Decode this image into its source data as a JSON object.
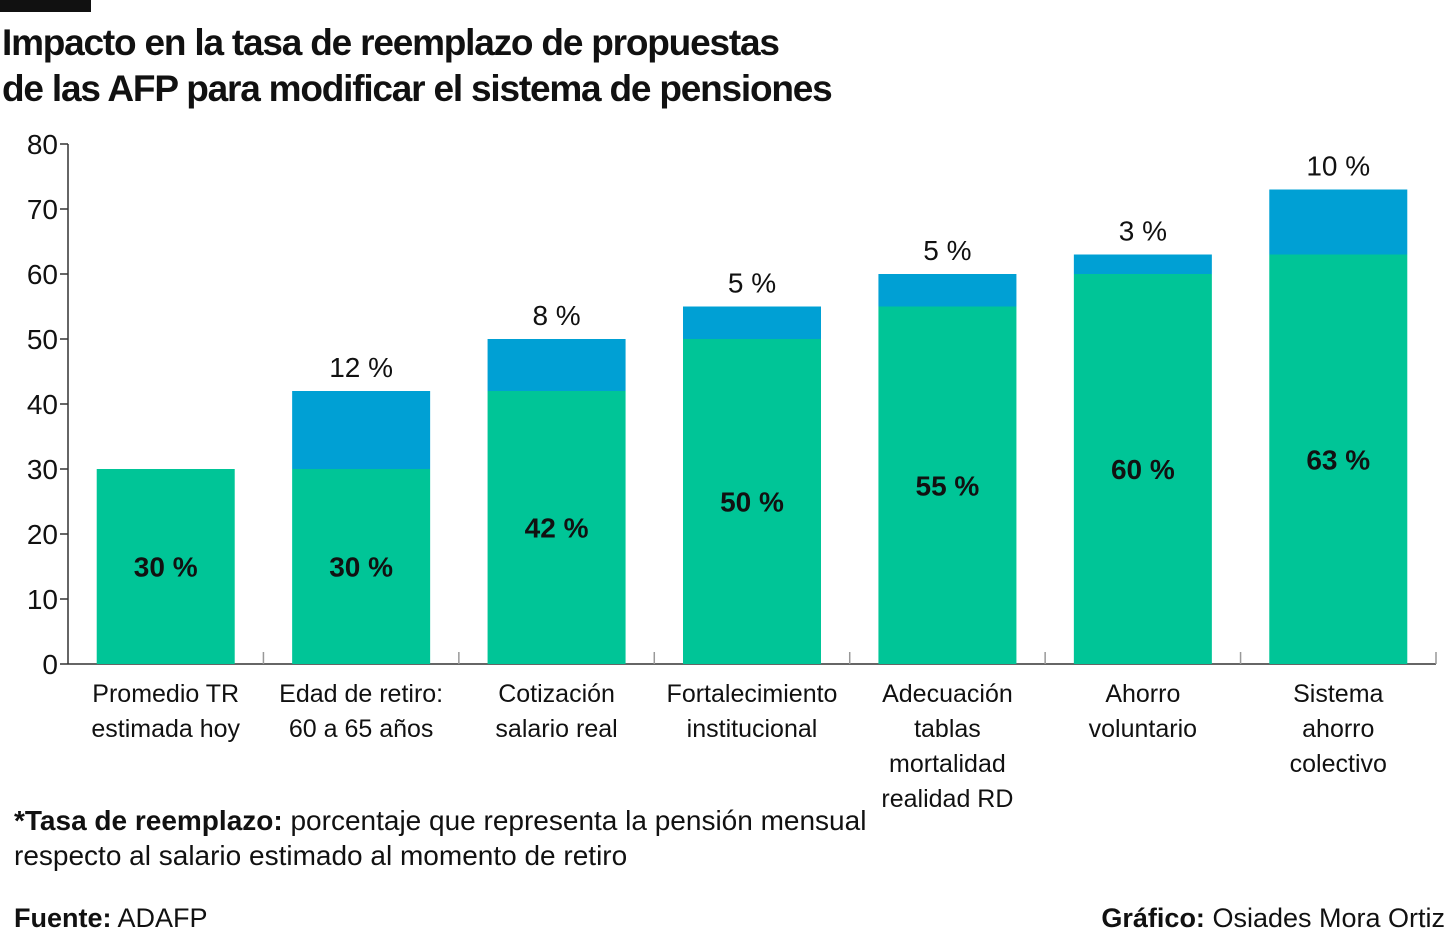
{
  "title": {
    "line1": "Impacto en la tasa de reemplazo de propuestas",
    "line2": "de las AFP para modificar el sistema de pensiones"
  },
  "colors": {
    "base": "#00C597",
    "increment": "#00A0D4",
    "axis": "#333333",
    "text": "#111111"
  },
  "chart_data": {
    "type": "bar",
    "stacked": true,
    "categories": [
      [
        "Promedio TR",
        "estimada hoy"
      ],
      [
        "Edad de retiro:",
        "60 a 65 años"
      ],
      [
        "Cotización",
        "salario real"
      ],
      [
        "Fortalecimiento",
        "institucional"
      ],
      [
        "Adecuación",
        "tablas",
        "mortalidad",
        "realidad RD"
      ],
      [
        "Ahorro",
        "voluntario"
      ],
      [
        "Sistema",
        "ahorro",
        "colectivo"
      ]
    ],
    "series": [
      {
        "values": [
          30,
          30,
          42,
          50,
          55,
          60,
          63
        ]
      },
      {
        "values": [
          0,
          12,
          8,
          5,
          5,
          3,
          10
        ]
      }
    ],
    "base_labels": [
      "30 %",
      "30 %",
      "42 %",
      "50 %",
      "55 %",
      "60 %",
      "63 %"
    ],
    "increment_labels": [
      "",
      "12 %",
      "8 %",
      "5 %",
      "5 %",
      "3 %",
      "10 %"
    ],
    "yticks": [
      "0",
      "10",
      "20",
      "30",
      "40",
      "50",
      "60",
      "70",
      "80"
    ],
    "ylim": [
      0,
      80
    ],
    "grid": false,
    "legend": "none"
  },
  "note": {
    "bold": "*Tasa de reemplazo:",
    "text": " porcentaje que representa la pensión mensual respecto al salario estimado al momento de retiro"
  },
  "source": {
    "label": "Fuente:",
    "value": " ADAFP"
  },
  "credit": {
    "label": "Gráfico:",
    "value": " Osiades Mora Ortiz"
  }
}
